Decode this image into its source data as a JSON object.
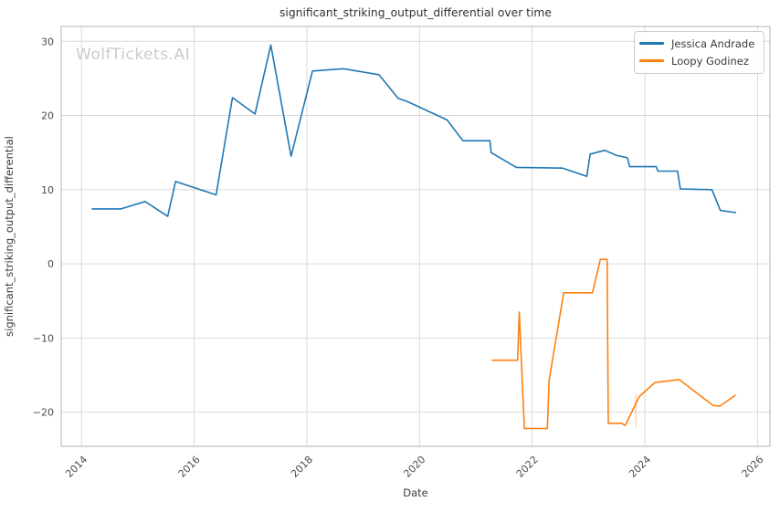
{
  "watermark": "WolfTickets.AI",
  "chart_data": {
    "type": "line",
    "title": "significant_striking_output_differential over time",
    "xlabel": "Date",
    "ylabel": "significant_striking_output_differential",
    "grid": true,
    "legend_position": "upper right",
    "xlim": [
      2013.64,
      2026.22
    ],
    "ylim": [
      -24.6,
      32.0
    ],
    "xticks": {
      "values": [
        2014,
        2016,
        2018,
        2020,
        2022,
        2024,
        2026
      ],
      "labels": [
        "2014",
        "2016",
        "2018",
        "2020",
        "2022",
        "2024",
        "2026"
      ]
    },
    "yticks": {
      "values": [
        30,
        20,
        10,
        0,
        -10,
        -20
      ],
      "labels": [
        "30",
        "20",
        "10",
        "0",
        "−10",
        "−20"
      ]
    },
    "series": [
      {
        "name": "Jessica Andrade",
        "color": "#1f77b4",
        "x": [
          2014.18,
          2014.7,
          2015.13,
          2015.53,
          2015.67,
          2016.39,
          2016.68,
          2017.08,
          2017.36,
          2017.72,
          2018.1,
          2018.65,
          2019.28,
          2019.62,
          2019.78,
          2020.49,
          2020.77,
          2021.25,
          2021.27,
          2021.72,
          2022.54,
          2022.97,
          2023.03,
          2023.29,
          2023.5,
          2023.69,
          2023.73,
          2024.2,
          2024.23,
          2024.58,
          2024.63,
          2025.19,
          2025.34,
          2025.62
        ],
        "y": [
          7.4,
          7.4,
          8.4,
          6.4,
          11.1,
          9.3,
          22.4,
          20.2,
          29.5,
          14.5,
          26.0,
          26.3,
          25.5,
          22.3,
          21.9,
          19.4,
          16.6,
          16.6,
          15.0,
          13.0,
          12.9,
          11.8,
          14.8,
          15.3,
          14.6,
          14.3,
          13.1,
          13.1,
          12.5,
          12.5,
          10.1,
          10.0,
          7.2,
          6.9
        ]
      },
      {
        "name": "Loopy Godinez",
        "color": "#ff7f0e",
        "x": [
          2021.28,
          2021.74,
          2021.77,
          2021.86,
          2022.27,
          2022.3,
          2022.56,
          2023.07,
          2023.21,
          2023.33,
          2023.35,
          2023.59,
          2023.65,
          2023.9,
          2024.18,
          2024.61,
          2025.21,
          2025.33,
          2025.61
        ],
        "y": [
          -13.0,
          -13.0,
          -6.5,
          -22.2,
          -22.2,
          -15.7,
          -3.9,
          -3.9,
          0.6,
          0.6,
          -21.5,
          -21.5,
          -21.8,
          -17.9,
          -16.0,
          -15.6,
          -19.1,
          -19.2,
          -17.7
        ]
      }
    ],
    "faint_marks": [
      {
        "x": 2023.84,
        "y1": -17.4,
        "y2": -22.0,
        "color": "#ff7f0e",
        "opacity": 0.3
      }
    ]
  }
}
